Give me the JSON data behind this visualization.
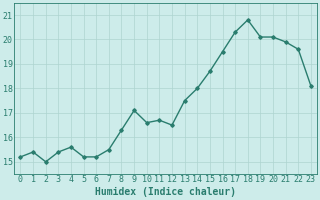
{
  "xlabel": "Humidex (Indice chaleur)",
  "x": [
    0,
    1,
    2,
    3,
    4,
    5,
    6,
    7,
    8,
    9,
    10,
    11,
    12,
    13,
    14,
    15,
    16,
    17,
    18,
    19,
    20,
    21,
    22,
    23
  ],
  "y": [
    15.2,
    15.4,
    15.0,
    15.4,
    15.6,
    15.2,
    15.2,
    15.5,
    16.3,
    17.1,
    16.6,
    16.7,
    16.5,
    17.5,
    18.0,
    18.7,
    19.5,
    20.3,
    20.8,
    20.1,
    20.1,
    19.9,
    19.6,
    18.1
  ],
  "line_color": "#2a7d6e",
  "bg_color": "#cdecea",
  "grid_color": "#aed4d0",
  "tick_color": "#2a7d6e",
  "ylim": [
    14.5,
    21.5
  ],
  "yticks": [
    15,
    16,
    17,
    18,
    19,
    20,
    21
  ],
  "marker": "D",
  "marker_size": 1.8,
  "line_width": 1.0,
  "xlabel_fontsize": 7,
  "tick_fontsize": 6
}
